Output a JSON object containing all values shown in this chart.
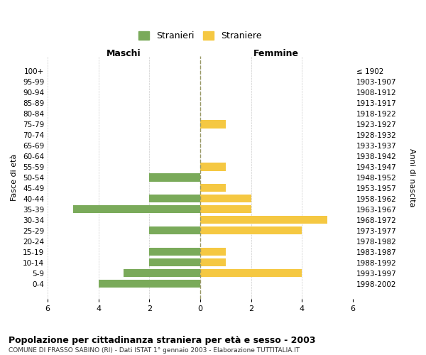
{
  "age_groups": [
    "0-4",
    "5-9",
    "10-14",
    "15-19",
    "20-24",
    "25-29",
    "30-34",
    "35-39",
    "40-44",
    "45-49",
    "50-54",
    "55-59",
    "60-64",
    "65-69",
    "70-74",
    "75-79",
    "80-84",
    "85-89",
    "90-94",
    "95-99",
    "100+"
  ],
  "birth_years": [
    "1998-2002",
    "1993-1997",
    "1988-1992",
    "1983-1987",
    "1978-1982",
    "1973-1977",
    "1968-1972",
    "1963-1967",
    "1958-1962",
    "1953-1957",
    "1948-1952",
    "1943-1947",
    "1938-1942",
    "1933-1937",
    "1928-1932",
    "1923-1927",
    "1918-1922",
    "1913-1917",
    "1908-1912",
    "1903-1907",
    "≤ 1902"
  ],
  "maschi": [
    4,
    3,
    2,
    2,
    0,
    2,
    0,
    5,
    2,
    0,
    2,
    0,
    0,
    0,
    0,
    0,
    0,
    0,
    0,
    0,
    0
  ],
  "femmine": [
    0,
    4,
    1,
    1,
    0,
    4,
    5,
    2,
    2,
    1,
    0,
    1,
    0,
    0,
    0,
    1,
    0,
    0,
    0,
    0,
    0
  ],
  "maschi_color": "#7aaa5a",
  "femmine_color": "#f5c842",
  "title": "Popolazione per cittadinanza straniera per età e sesso - 2003",
  "subtitle": "COMUNE DI FRASSO SABINO (RI) - Dati ISTAT 1° gennaio 2003 - Elaborazione TUTTITALIA.IT",
  "xlabel_left": "Maschi",
  "xlabel_right": "Femmine",
  "ylabel_left": "Fasce di età",
  "ylabel_right": "Anni di nascita",
  "legend_maschi": "Stranieri",
  "legend_femmine": "Straniere",
  "xlim": 6,
  "bg_color": "#ffffff",
  "grid_color": "#cccccc",
  "dashed_line_color": "#999966",
  "bar_height": 0.75
}
